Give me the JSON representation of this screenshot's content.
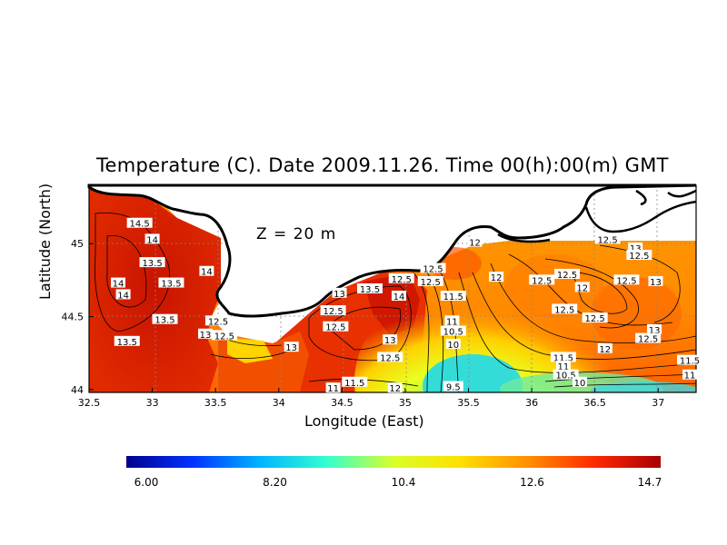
{
  "title": "Temperature (C). Date 2009.11.26. Time 00(h):00(m) GMT",
  "depth_label": "Z = 20 m",
  "xlabel": "Longitude (East)",
  "ylabel": "Latitude (North)",
  "x_ticks": [
    "32.5",
    "33",
    "33.5",
    "34",
    "34.5",
    "35",
    "35.5",
    "36",
    "36.5",
    "37"
  ],
  "y_ticks": [
    "44",
    "44.5",
    "45"
  ],
  "colorbar": {
    "ticks": [
      "6.00",
      "8.20",
      "10.4",
      "12.6",
      "14.7"
    ],
    "colors": [
      "#00008f",
      "#0033ff",
      "#00b4ff",
      "#33ffd0",
      "#d8ff2a",
      "#ffe000",
      "#ff9000",
      "#ff2a00",
      "#a80000"
    ]
  },
  "chart_data": {
    "type": "heatmap",
    "variable": "Temperature (C)",
    "xlabel": "Longitude (East)",
    "ylabel": "Latitude (North)",
    "xlim": [
      32.5,
      37.3
    ],
    "ylim": [
      43.98,
      45.4
    ],
    "vmin": 6.0,
    "vmax": 14.7,
    "contour_labels": [
      {
        "lon": 32.9,
        "lat": 45.14,
        "value": "14.5"
      },
      {
        "lon": 33.0,
        "lat": 45.03,
        "value": "14"
      },
      {
        "lon": 33.0,
        "lat": 44.87,
        "value": "13.5"
      },
      {
        "lon": 33.43,
        "lat": 44.81,
        "value": "14"
      },
      {
        "lon": 32.73,
        "lat": 44.73,
        "value": "14"
      },
      {
        "lon": 32.77,
        "lat": 44.65,
        "value": "14"
      },
      {
        "lon": 33.15,
        "lat": 44.73,
        "value": "13.5"
      },
      {
        "lon": 33.1,
        "lat": 44.48,
        "value": "13.5"
      },
      {
        "lon": 33.52,
        "lat": 44.47,
        "value": "12.5"
      },
      {
        "lon": 33.42,
        "lat": 44.38,
        "value": "13"
      },
      {
        "lon": 33.57,
        "lat": 44.37,
        "value": "12.5"
      },
      {
        "lon": 32.8,
        "lat": 44.33,
        "value": "13.5"
      },
      {
        "lon": 34.1,
        "lat": 44.29,
        "value": "13"
      },
      {
        "lon": 34.48,
        "lat": 44.66,
        "value": "13"
      },
      {
        "lon": 34.72,
        "lat": 44.69,
        "value": "13.5"
      },
      {
        "lon": 34.95,
        "lat": 44.64,
        "value": "14"
      },
      {
        "lon": 34.43,
        "lat": 44.54,
        "value": "12.5"
      },
      {
        "lon": 34.45,
        "lat": 44.43,
        "value": "12.5"
      },
      {
        "lon": 34.88,
        "lat": 44.34,
        "value": "13"
      },
      {
        "lon": 34.88,
        "lat": 44.22,
        "value": "12.5"
      },
      {
        "lon": 34.97,
        "lat": 44.76,
        "value": "12.5"
      },
      {
        "lon": 35.22,
        "lat": 44.83,
        "value": "12.5"
      },
      {
        "lon": 35.2,
        "lat": 44.74,
        "value": "12.5"
      },
      {
        "lon": 35.55,
        "lat": 45.01,
        "value": "12"
      },
      {
        "lon": 35.38,
        "lat": 44.64,
        "value": "11.5"
      },
      {
        "lon": 35.37,
        "lat": 44.47,
        "value": "11"
      },
      {
        "lon": 35.38,
        "lat": 44.4,
        "value": "10.5"
      },
      {
        "lon": 35.38,
        "lat": 44.31,
        "value": "10"
      },
      {
        "lon": 35.38,
        "lat": 44.02,
        "value": "9.5"
      },
      {
        "lon": 35.72,
        "lat": 44.77,
        "value": "12"
      },
      {
        "lon": 36.08,
        "lat": 44.75,
        "value": "12.5"
      },
      {
        "lon": 36.28,
        "lat": 44.79,
        "value": "12.5"
      },
      {
        "lon": 36.4,
        "lat": 44.7,
        "value": "12"
      },
      {
        "lon": 36.26,
        "lat": 44.55,
        "value": "12.5"
      },
      {
        "lon": 36.5,
        "lat": 44.49,
        "value": "12.5"
      },
      {
        "lon": 36.6,
        "lat": 45.03,
        "value": "12.5"
      },
      {
        "lon": 36.82,
        "lat": 44.97,
        "value": "13"
      },
      {
        "lon": 36.85,
        "lat": 44.92,
        "value": "12.5"
      },
      {
        "lon": 36.75,
        "lat": 44.75,
        "value": "12.5"
      },
      {
        "lon": 36.98,
        "lat": 44.74,
        "value": "13"
      },
      {
        "lon": 36.97,
        "lat": 44.41,
        "value": "13"
      },
      {
        "lon": 36.92,
        "lat": 44.35,
        "value": "12.5"
      },
      {
        "lon": 36.58,
        "lat": 44.28,
        "value": "12"
      },
      {
        "lon": 36.25,
        "lat": 44.22,
        "value": "11.5"
      },
      {
        "lon": 36.25,
        "lat": 44.16,
        "value": "11"
      },
      {
        "lon": 36.27,
        "lat": 44.1,
        "value": "10.5"
      },
      {
        "lon": 36.38,
        "lat": 44.05,
        "value": "10"
      },
      {
        "lon": 37.25,
        "lat": 44.2,
        "value": "11.5"
      },
      {
        "lon": 37.25,
        "lat": 44.1,
        "value": "11"
      },
      {
        "lon": 34.6,
        "lat": 44.05,
        "value": "11.5"
      },
      {
        "lon": 34.43,
        "lat": 44.01,
        "value": "11"
      },
      {
        "lon": 34.92,
        "lat": 44.01,
        "value": "12"
      }
    ]
  }
}
